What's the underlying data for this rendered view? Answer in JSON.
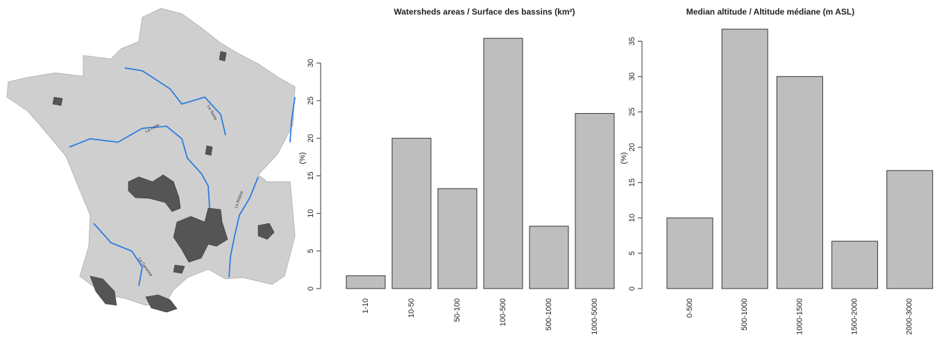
{
  "map": {
    "river_labels": [
      "La Seine",
      "La Loire",
      "Le Rhône",
      "La Garonne"
    ]
  },
  "chart_data": [
    {
      "type": "bar",
      "title": "Watersheds areas / Surface des bassins (km²)",
      "y_label": "(%)",
      "categories": [
        "1-10",
        "10-50",
        "50-100",
        "100-500",
        "500-1000",
        "1000-5000"
      ],
      "values": [
        1.7,
        20,
        13.3,
        33.3,
        8.3,
        23.3
      ],
      "color": "#bebebe",
      "ylim": [
        0,
        34.7
      ],
      "yticks": [
        0,
        5,
        10,
        15,
        20,
        25,
        30
      ]
    },
    {
      "type": "bar",
      "title": "Median altitude / Altitude médiane (m ASL)",
      "y_label": "(%)",
      "categories": [
        "0-500",
        "500-1000",
        "1000-1500",
        "1500-2000",
        "2000-3000"
      ],
      "values": [
        10,
        36.7,
        30,
        6.7,
        16.7
      ],
      "color": "#bebebe",
      "ylim": [
        0,
        36.9
      ],
      "yticks": [
        0,
        5,
        10,
        15,
        20,
        25,
        30,
        35
      ]
    }
  ]
}
